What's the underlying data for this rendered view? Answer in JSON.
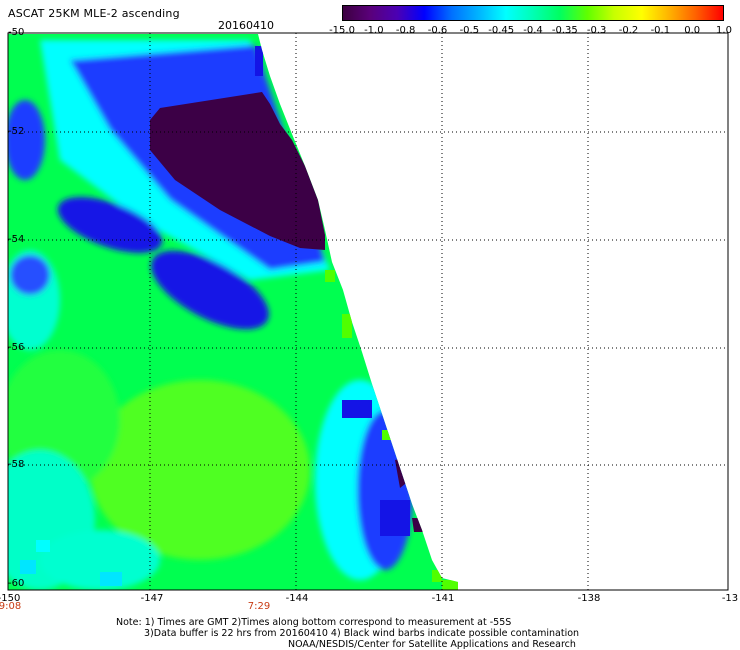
{
  "header": {
    "title": "ASCAT 25KM MLE-2 ascending",
    "date": "20160410"
  },
  "colorbar": {
    "labels": [
      "-15.0",
      "-1.0",
      "-0.8",
      "-0.6",
      "-0.5",
      "-0.45",
      "-0.4",
      "-0.35",
      "-0.3",
      "-0.2",
      "-0.1",
      "0.0",
      "1.0"
    ],
    "colors": [
      "#3c0040",
      "#5a007a",
      "#4b00b4",
      "#0000ff",
      "#0070ff",
      "#00b4ff",
      "#00ffff",
      "#00ffb4",
      "#00ff60",
      "#60ff00",
      "#c8ff00",
      "#ffff00",
      "#ffb400",
      "#ff6000",
      "#ff0000"
    ]
  },
  "axes": {
    "x_ticks": [
      "-150",
      "-147",
      "-144",
      "-141",
      "-138",
      "-13"
    ],
    "y_ticks": [
      "-50",
      "-52",
      "-54",
      "-56",
      "-58",
      "-60"
    ]
  },
  "time_labels": [
    "9:08",
    "7:29"
  ],
  "notes": {
    "line1": "Note: 1) Times are GMT 2)Times along bottom correspond to measurement at -55S",
    "line2": "3)Data buffer is 22 hrs from 20160410 4) Black wind barbs indicate possible contamination",
    "line3": "NOAA/NESDIS/Center for Satellite Applications and Research"
  },
  "map_colors": {
    "dark_purple": "#3c0046",
    "blue": "#1414e6",
    "medium_blue": "#2850ff",
    "cyan": "#00ffff",
    "aqua_green": "#00ffa0",
    "green": "#00ff50",
    "light_green": "#50ff00"
  }
}
